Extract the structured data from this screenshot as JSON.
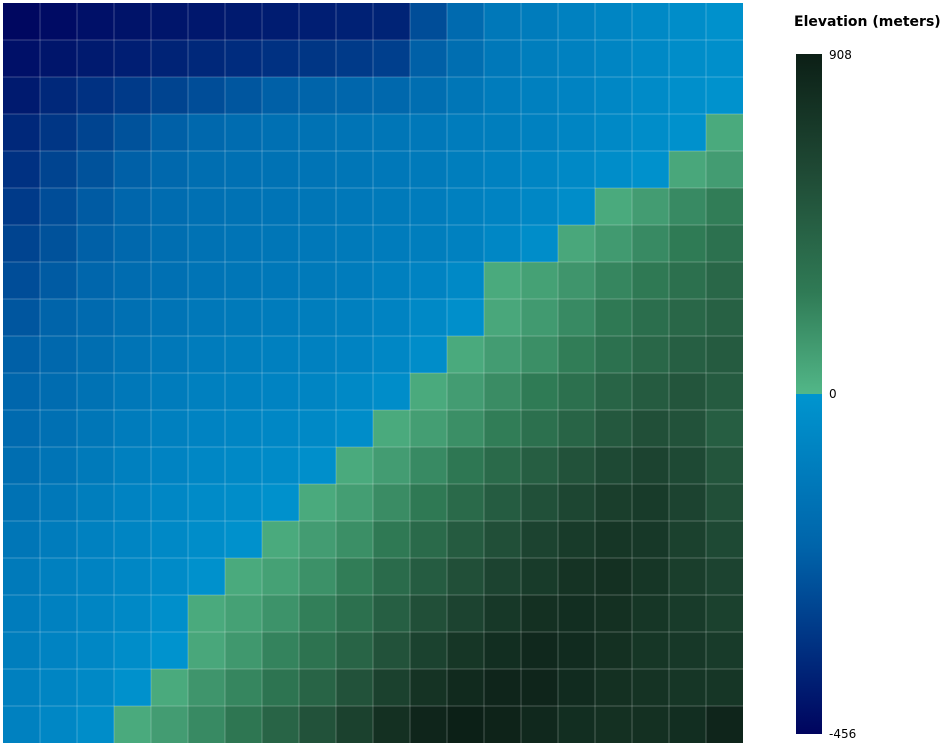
{
  "chart_data": {
    "type": "heatmap",
    "title": "",
    "xlabel": "",
    "ylabel": "",
    "rows": 20,
    "cols": 20,
    "grid": true,
    "legend": {
      "title": "Elevation (meters)",
      "placement": "right",
      "max_label": "908",
      "zero_label": "0",
      "min_label": "-456",
      "min": -456,
      "max": 908
    },
    "colors": {
      "land_low": "#52b788",
      "land_high": "#0c1f16",
      "water_shallow": "#0095cf",
      "water_deep": "#00045e",
      "grid_line": "#ffffff"
    },
    "values": [
      [
        -450,
        -440,
        -430,
        -425,
        -420,
        -415,
        -410,
        -405,
        -400,
        -395,
        -390,
        -300,
        -220,
        -150,
        -130,
        -100,
        -80,
        -60,
        -40,
        -20
      ],
      [
        -430,
        -420,
        -410,
        -400,
        -390,
        -380,
        -370,
        -360,
        -350,
        -340,
        -330,
        -260,
        -200,
        -150,
        -120,
        -100,
        -80,
        -60,
        -40,
        -30
      ],
      [
        -410,
        -380,
        -360,
        -340,
        -320,
        -300,
        -280,
        -260,
        -250,
        -240,
        -230,
        -200,
        -160,
        -130,
        -110,
        -90,
        -70,
        -50,
        -30,
        -15
      ],
      [
        -380,
        -350,
        -320,
        -290,
        -260,
        -230,
        -210,
        -190,
        -180,
        -170,
        -160,
        -150,
        -130,
        -120,
        -100,
        -80,
        -60,
        -40,
        -20,
        60
      ],
      [
        -360,
        -320,
        -290,
        -260,
        -230,
        -200,
        -190,
        -180,
        -170,
        -160,
        -150,
        -140,
        -120,
        -100,
        -80,
        -60,
        -40,
        -20,
        70,
        120
      ],
      [
        -340,
        -300,
        -270,
        -240,
        -210,
        -190,
        -180,
        -170,
        -160,
        -150,
        -140,
        -130,
        -110,
        -90,
        -70,
        -40,
        60,
        120,
        200,
        260
      ],
      [
        -320,
        -290,
        -260,
        -230,
        -200,
        -180,
        -170,
        -160,
        -150,
        -140,
        -130,
        -120,
        -100,
        -70,
        -40,
        70,
        130,
        200,
        270,
        330
      ],
      [
        -300,
        -270,
        -240,
        -210,
        -190,
        -170,
        -160,
        -150,
        -140,
        -130,
        -110,
        -90,
        -60,
        60,
        100,
        150,
        220,
        280,
        340,
        400
      ],
      [
        -280,
        -250,
        -220,
        -190,
        -170,
        -150,
        -140,
        -130,
        -120,
        -110,
        -90,
        -60,
        -30,
        70,
        130,
        200,
        280,
        350,
        400,
        440
      ],
      [
        -260,
        -230,
        -200,
        -170,
        -150,
        -130,
        -120,
        -110,
        -100,
        -90,
        -70,
        -40,
        60,
        120,
        180,
        260,
        330,
        400,
        450,
        480
      ],
      [
        -240,
        -210,
        -180,
        -150,
        -130,
        -110,
        -100,
        -90,
        -80,
        -60,
        -40,
        60,
        120,
        190,
        270,
        340,
        420,
        480,
        520,
        480
      ],
      [
        -220,
        -190,
        -160,
        -130,
        -110,
        -90,
        -80,
        -70,
        -60,
        -40,
        60,
        110,
        180,
        260,
        340,
        420,
        500,
        560,
        540,
        460
      ],
      [
        -200,
        -170,
        -140,
        -110,
        -90,
        -70,
        -60,
        -50,
        -30,
        60,
        120,
        200,
        290,
        380,
        460,
        540,
        600,
        640,
        600,
        520
      ],
      [
        -180,
        -150,
        -120,
        -90,
        -70,
        -50,
        -40,
        -20,
        60,
        110,
        190,
        280,
        380,
        470,
        550,
        620,
        680,
        700,
        640,
        560
      ],
      [
        -160,
        -130,
        -100,
        -80,
        -60,
        -40,
        -20,
        60,
        120,
        180,
        280,
        380,
        480,
        560,
        640,
        700,
        740,
        720,
        660,
        600
      ],
      [
        -140,
        -110,
        -90,
        -70,
        -50,
        -20,
        60,
        100,
        170,
        260,
        370,
        470,
        560,
        640,
        700,
        760,
        780,
        740,
        680,
        640
      ],
      [
        -130,
        -100,
        -80,
        -60,
        -30,
        60,
        100,
        160,
        250,
        340,
        450,
        560,
        640,
        720,
        780,
        800,
        780,
        740,
        700,
        660
      ],
      [
        -120,
        -90,
        -70,
        -40,
        -10,
        70,
        140,
        230,
        320,
        420,
        540,
        650,
        740,
        800,
        840,
        820,
        780,
        740,
        720,
        700
      ],
      [
        -110,
        -80,
        -60,
        -20,
        60,
        150,
        220,
        310,
        420,
        540,
        660,
        760,
        830,
        860,
        860,
        820,
        780,
        760,
        740,
        740
      ],
      [
        -100,
        -70,
        -40,
        60,
        120,
        200,
        300,
        420,
        540,
        660,
        780,
        860,
        900,
        880,
        840,
        800,
        780,
        780,
        800,
        860
      ]
    ]
  }
}
